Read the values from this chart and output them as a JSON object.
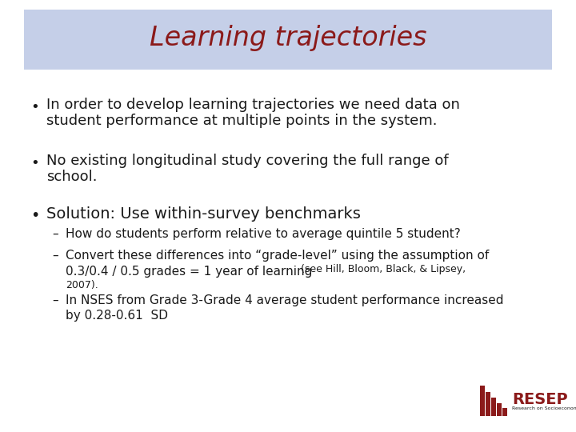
{
  "title": "Learning trajectories",
  "title_color": "#8B1A1A",
  "title_bg_color": "#C5CFE8",
  "bg_color": "#FFFFFF",
  "bullet1_line1": "In order to develop learning trajectories we need data on",
  "bullet1_line2": "student performance at multiple points in the system.",
  "bullet2_line1": "No existing longitudinal study covering the full range of",
  "bullet2_line2": "school.",
  "bullet3_main": "Solution: Use within-survey benchmarks",
  "sub1": "How do students perform relative to average quintile 5 student?",
  "sub2_line1": "Convert these differences into “grade-level” using the assumption of",
  "sub2_line2": "0.3/0.4 / 0.5 grades = 1 year of learning",
  "sub2_line2b": " (see Hill, Bloom, Black, & Lipsey,",
  "sub2_line3": "2007).",
  "sub3_line1": "In NSES from Grade 3-Grade 4 average student performance increased",
  "sub3_line2": "by 0.28-0.61  SD",
  "text_color": "#1A1A1A",
  "bullet_color": "#1A1A1A",
  "resep_color": "#8B1A1A",
  "title_fontsize": 24,
  "body_fontsize": 13,
  "sub_fontsize": 11,
  "sub_small_fontsize": 9
}
